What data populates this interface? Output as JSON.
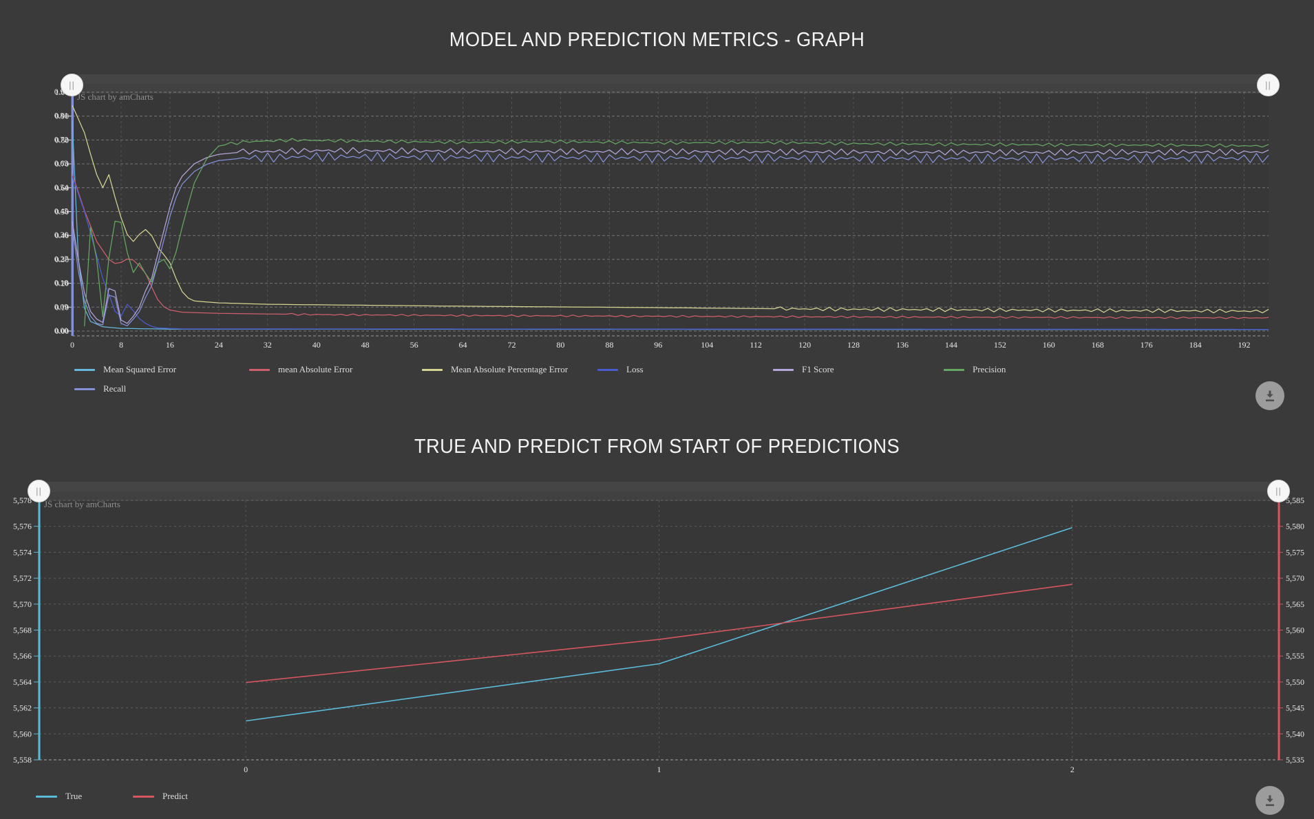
{
  "ui": {
    "handle_glyph": "||",
    "colors": {
      "background": "#3a3a3a",
      "scroll_strip": "#454545",
      "grid": "rgba(255,255,255,0.32)",
      "grid_vertical": "rgba(255,255,255,0.16)",
      "axis_text": "#e8e8e8",
      "left_axis_line_chart1": "#8591d5",
      "download_icon": "#4f4f4f"
    }
  },
  "chart_data": [
    {
      "type": "line",
      "title": "MODEL AND PREDICTION METRICS - GRAPH",
      "watermark": "JS chart by amCharts",
      "xlabel": "",
      "ylabel": "",
      "x_axis": {
        "min": 0,
        "max": 196,
        "tick_step": 8,
        "tick_labels": [
          "0",
          "8",
          "16",
          "24",
          "32",
          "40",
          "48",
          "56",
          "64",
          "72",
          "80",
          "88",
          "96",
          "104",
          "112",
          "120",
          "128",
          "136",
          "144",
          "152",
          "160",
          "168",
          "176",
          "184",
          "192"
        ]
      },
      "y_axis": {
        "min": 0,
        "max": 1,
        "labels_primary": [
          "1.00",
          "0.90",
          "0.80",
          "0.70",
          "0.60",
          "0.50",
          "0.40",
          "0.30",
          "0.20",
          "0.10",
          "0.00"
        ],
        "labels_secondary": [
          "0.90",
          "0.81",
          "0.72",
          "0.63",
          "0.54",
          "0.45",
          "0.36",
          "0.27",
          "0.18",
          "0.09",
          "0.00"
        ],
        "note": "two overlapping value axes rendered on top of each other"
      },
      "grid": true,
      "legend_position": "bottom-left",
      "series": [
        {
          "name": "Mean Squared Error",
          "color": "#67b7dc",
          "keypoints": [
            [
              0,
              0.88
            ],
            [
              1,
              0.3
            ],
            [
              2,
              0.095
            ],
            [
              3,
              0.04
            ],
            [
              5,
              0.018
            ],
            [
              8,
              0.011
            ],
            [
              16,
              0.008
            ],
            [
              196,
              0.006
            ]
          ],
          "noise": null
        },
        {
          "name": "mean Absolute Error",
          "color": "#d05f6d",
          "keypoints": [
            [
              0,
              0.657
            ],
            [
              2,
              0.505
            ],
            [
              4,
              0.375
            ],
            [
              6,
              0.3
            ],
            [
              7,
              0.283
            ],
            [
              8,
              0.287
            ],
            [
              9,
              0.302
            ],
            [
              10,
              0.297
            ],
            [
              11,
              0.272
            ],
            [
              12,
              0.242
            ],
            [
              13,
              0.185
            ],
            [
              14,
              0.132
            ],
            [
              15,
              0.102
            ],
            [
              16,
              0.088
            ],
            [
              18,
              0.079
            ],
            [
              24,
              0.074
            ],
            [
              40,
              0.069
            ],
            [
              64,
              0.065
            ],
            [
              96,
              0.062
            ],
            [
              128,
              0.059
            ],
            [
              160,
              0.057
            ],
            [
              196,
              0.055
            ]
          ],
          "noise": {
            "from": 36,
            "amp": 0.0038,
            "phase": 0.8
          }
        },
        {
          "name": "Mean Absolute Percentage Error",
          "color": "#d6d492",
          "keypoints": [
            [
              0,
              0.945
            ],
            [
              2,
              0.83
            ],
            [
              3,
              0.74
            ],
            [
              4,
              0.655
            ],
            [
              5,
              0.6
            ],
            [
              6,
              0.655
            ],
            [
              7,
              0.56
            ],
            [
              8,
              0.475
            ],
            [
              9,
              0.405
            ],
            [
              10,
              0.375
            ],
            [
              11,
              0.405
            ],
            [
              12,
              0.425
            ],
            [
              13,
              0.4
            ],
            [
              14,
              0.35
            ],
            [
              15,
              0.32
            ],
            [
              16,
              0.285
            ],
            [
              17,
              0.22
            ],
            [
              18,
              0.165
            ],
            [
              19,
              0.138
            ],
            [
              20,
              0.126
            ],
            [
              24,
              0.118
            ],
            [
              32,
              0.112
            ],
            [
              48,
              0.108
            ],
            [
              64,
              0.104
            ],
            [
              80,
              0.101
            ],
            [
              96,
              0.098
            ],
            [
              112,
              0.094
            ],
            [
              128,
              0.091
            ],
            [
              144,
              0.089
            ],
            [
              160,
              0.087
            ],
            [
              180,
              0.085
            ],
            [
              196,
              0.083
            ]
          ],
          "noise": {
            "from": 116,
            "amp": 0.008,
            "phase": 2.5
          }
        },
        {
          "name": "Loss",
          "color": "#4a5bd0",
          "keypoints": [
            [
              0,
              0.648
            ],
            [
              2,
              0.5
            ],
            [
              3,
              0.41
            ],
            [
              4,
              0.315
            ],
            [
              5,
              0.22
            ],
            [
              6,
              0.155
            ],
            [
              7,
              0.082
            ],
            [
              8,
              0.062
            ],
            [
              9,
              0.112
            ],
            [
              10,
              0.085
            ],
            [
              11,
              0.052
            ],
            [
              12,
              0.032
            ],
            [
              13,
              0.02
            ],
            [
              14,
              0.013
            ],
            [
              18,
              0.009
            ],
            [
              196,
              0.007
            ]
          ],
          "noise": null
        },
        {
          "name": "F1 Score",
          "color": "#b5a6dc",
          "keypoints": [
            [
              0,
              0.46
            ],
            [
              1,
              0.295
            ],
            [
              2,
              0.16
            ],
            [
              3,
              0.082
            ],
            [
              4,
              0.05
            ],
            [
              5,
              0.036
            ],
            [
              6,
              0.178
            ],
            [
              7,
              0.168
            ],
            [
              8,
              0.046
            ],
            [
              9,
              0.032
            ],
            [
              10,
              0.062
            ],
            [
              11,
              0.1
            ],
            [
              12,
              0.168
            ],
            [
              13,
              0.22
            ],
            [
              14,
              0.32
            ],
            [
              15,
              0.42
            ],
            [
              16,
              0.52
            ],
            [
              17,
              0.6
            ],
            [
              18,
              0.648
            ],
            [
              20,
              0.7
            ],
            [
              22,
              0.726
            ],
            [
              24,
              0.74
            ],
            [
              28,
              0.75
            ],
            [
              40,
              0.756
            ],
            [
              80,
              0.752
            ],
            [
              120,
              0.75
            ],
            [
              160,
              0.748
            ],
            [
              196,
              0.75
            ]
          ],
          "noise": {
            "from": 28,
            "amp": 0.013,
            "phase": 1.2
          }
        },
        {
          "name": "Precision",
          "color": "#66a863",
          "keypoints": [
            [
              2,
              0.02
            ],
            [
              3,
              0.435
            ],
            [
              4,
              0.3
            ],
            [
              5,
              0.06
            ],
            [
              6,
              0.305
            ],
            [
              7,
              0.46
            ],
            [
              8,
              0.455
            ],
            [
              9,
              0.33
            ],
            [
              10,
              0.245
            ],
            [
              11,
              0.285
            ],
            [
              12,
              0.24
            ],
            [
              13,
              0.205
            ],
            [
              14,
              0.285
            ],
            [
              15,
              0.3
            ],
            [
              16,
              0.26
            ],
            [
              17,
              0.33
            ],
            [
              18,
              0.435
            ],
            [
              19,
              0.53
            ],
            [
              20,
              0.62
            ],
            [
              22,
              0.72
            ],
            [
              24,
              0.775
            ],
            [
              28,
              0.792
            ],
            [
              36,
              0.8
            ],
            [
              48,
              0.795
            ],
            [
              64,
              0.79
            ],
            [
              80,
              0.793
            ],
            [
              96,
              0.788
            ],
            [
              112,
              0.79
            ],
            [
              128,
              0.785
            ],
            [
              144,
              0.782
            ],
            [
              160,
              0.78
            ],
            [
              180,
              0.778
            ],
            [
              196,
              0.775
            ]
          ],
          "noise": {
            "from": 26,
            "amp": 0.007,
            "phase": 2.0
          }
        },
        {
          "name": "Recall",
          "color": "#8591d8",
          "keypoints": [
            [
              0,
              0.44
            ],
            [
              1,
              0.25
            ],
            [
              2,
              0.125
            ],
            [
              3,
              0.062
            ],
            [
              4,
              0.032
            ],
            [
              5,
              0.026
            ],
            [
              6,
              0.15
            ],
            [
              7,
              0.142
            ],
            [
              8,
              0.032
            ],
            [
              9,
              0.022
            ],
            [
              10,
              0.05
            ],
            [
              11,
              0.082
            ],
            [
              12,
              0.14
            ],
            [
              13,
              0.19
            ],
            [
              14,
              0.28
            ],
            [
              15,
              0.38
            ],
            [
              16,
              0.48
            ],
            [
              17,
              0.558
            ],
            [
              18,
              0.615
            ],
            [
              20,
              0.668
            ],
            [
              22,
              0.698
            ],
            [
              24,
              0.714
            ],
            [
              28,
              0.724
            ],
            [
              40,
              0.73
            ],
            [
              80,
              0.726
            ],
            [
              120,
              0.724
            ],
            [
              160,
              0.722
            ],
            [
              196,
              0.724
            ]
          ],
          "noise": {
            "from": 28,
            "amp": 0.02,
            "phase": 4.1
          }
        }
      ]
    },
    {
      "type": "line",
      "title": "TRUE AND PREDICT FROM START OF PREDICTIONS",
      "watermark": "JS chart by amCharts",
      "categories": [
        "0",
        "1",
        "2"
      ],
      "y_left": {
        "min": 5558,
        "max": 5578,
        "step": 2,
        "color": "#5bbcd9",
        "labels": [
          "5,578",
          "5,576",
          "5,574",
          "5,572",
          "5,570",
          "5,568",
          "5,566",
          "5,564",
          "5,562",
          "5,560",
          "5,558"
        ]
      },
      "y_right": {
        "min": 5535,
        "max": 5585,
        "step": 5,
        "color": "#d8565f",
        "labels": [
          "5,585",
          "5,580",
          "5,575",
          "5,570",
          "5,565",
          "5,560",
          "5,555",
          "5,550",
          "5,545",
          "5,540",
          "5,535"
        ]
      },
      "grid": true,
      "legend_position": "bottom-left",
      "series": [
        {
          "name": "True",
          "color": "#5bbcd9",
          "axis": "left",
          "values": [
            5561.0,
            5565.4,
            5575.9
          ]
        },
        {
          "name": "Predict",
          "color": "#d8565f",
          "axis": "right",
          "values": [
            5549.9,
            5558.2,
            5568.8
          ]
        }
      ]
    }
  ]
}
